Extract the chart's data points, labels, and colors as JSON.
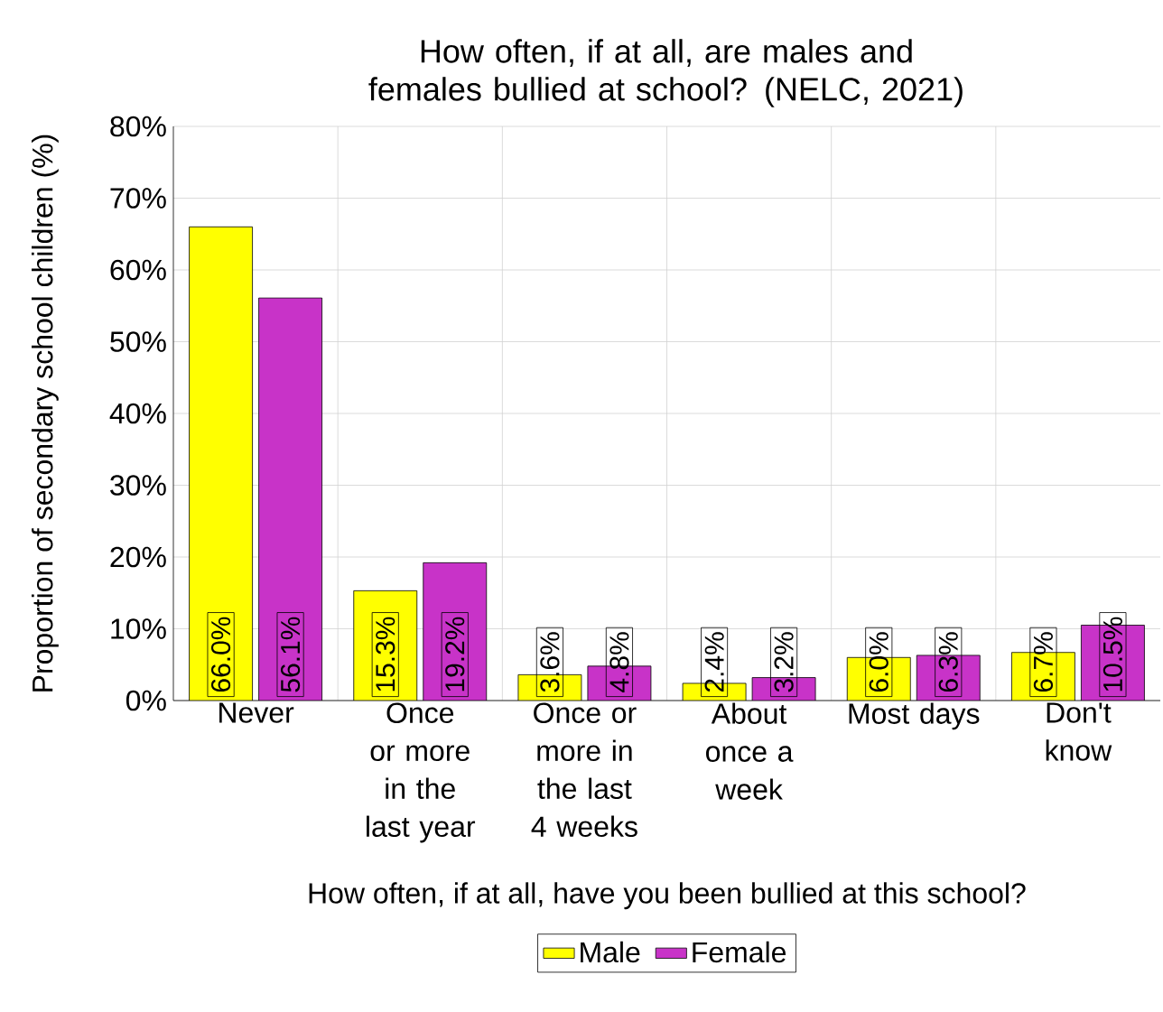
{
  "chart_data": {
    "type": "bar",
    "title": "How often, if at all, are males and females bullied at school? (NELC, 2021)",
    "xlabel": "How often, if at all, have you been bullied at this school?",
    "ylabel": "Proportion of secondary school children (%)",
    "categories": [
      "Never",
      "Once or more in the last year",
      "Once or more in the last 4 weeks",
      "About once a week",
      "Most days",
      "Don't know"
    ],
    "series": [
      {
        "name": "Male",
        "color": "#ffff00",
        "values": [
          66.0,
          15.3,
          3.6,
          2.4,
          6.0,
          6.7
        ],
        "value_labels": [
          "66.0%",
          "15.3%",
          "3.6%",
          "2.4%",
          "6.0%",
          "6.7%"
        ]
      },
      {
        "name": "Female",
        "color": "#c833c8",
        "values": [
          56.1,
          19.2,
          4.8,
          3.2,
          6.3,
          10.5
        ],
        "value_labels": [
          "56.1%",
          "19.2%",
          "4.8%",
          "3.2%",
          "6.3%",
          "10.5%"
        ]
      }
    ],
    "ylim": [
      0,
      80
    ],
    "yticks": [
      {
        "value": 0,
        "label": "0%"
      },
      {
        "value": 10,
        "label": "10%"
      },
      {
        "value": 20,
        "label": "20%"
      },
      {
        "value": 30,
        "label": "30%"
      },
      {
        "value": 40,
        "label": "40%"
      },
      {
        "value": 50,
        "label": "50%"
      },
      {
        "value": 60,
        "label": "60%"
      },
      {
        "value": 70,
        "label": "70%"
      },
      {
        "value": 80,
        "label": "80%"
      }
    ],
    "grid": true,
    "legend": "bottom"
  }
}
